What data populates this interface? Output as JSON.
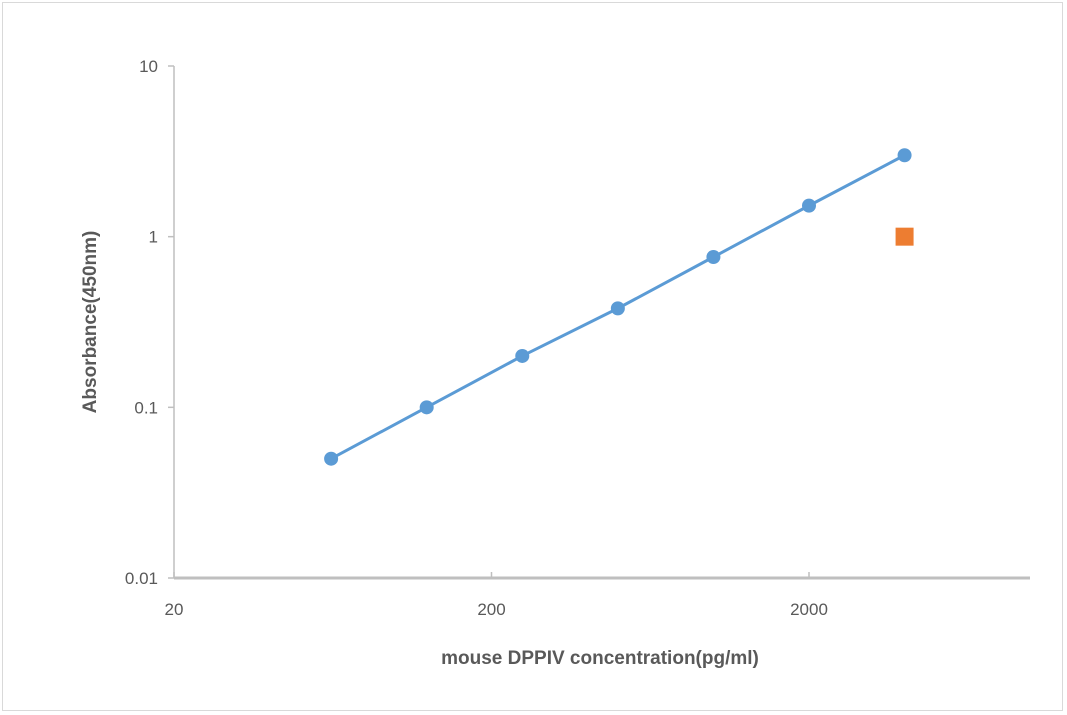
{
  "chart_data": {
    "type": "scatter",
    "title": "",
    "xlabel": "mouse DPPIV concentration(pg/ml)",
    "ylabel": "Absorbance(450nm)",
    "x_scale": "log",
    "y_scale": "log",
    "xlim": [
      20,
      10000
    ],
    "ylim": [
      0.01,
      10
    ],
    "x_ticks": [
      20,
      200,
      2000
    ],
    "x_tick_labels": [
      "20",
      "200",
      "2000"
    ],
    "y_ticks": [
      0.01,
      0.1,
      1,
      10
    ],
    "y_tick_labels": [
      "0.01",
      "0.1",
      "1",
      "10"
    ],
    "grid": false,
    "legend": "none",
    "series": [
      {
        "color": "#5b9bd5",
        "marker": "circle",
        "line": true,
        "points": [
          {
            "x": 62.5,
            "y": 0.05
          },
          {
            "x": 125,
            "y": 0.1
          },
          {
            "x": 250,
            "y": 0.2
          },
          {
            "x": 500,
            "y": 0.38
          },
          {
            "x": 1000,
            "y": 0.76
          },
          {
            "x": 2000,
            "y": 1.52
          },
          {
            "x": 4000,
            "y": 3.0
          }
        ]
      },
      {
        "color": "#ed7d31",
        "marker": "square",
        "line": false,
        "points": [
          {
            "x": 4000,
            "y": 1.0
          }
        ]
      }
    ]
  }
}
